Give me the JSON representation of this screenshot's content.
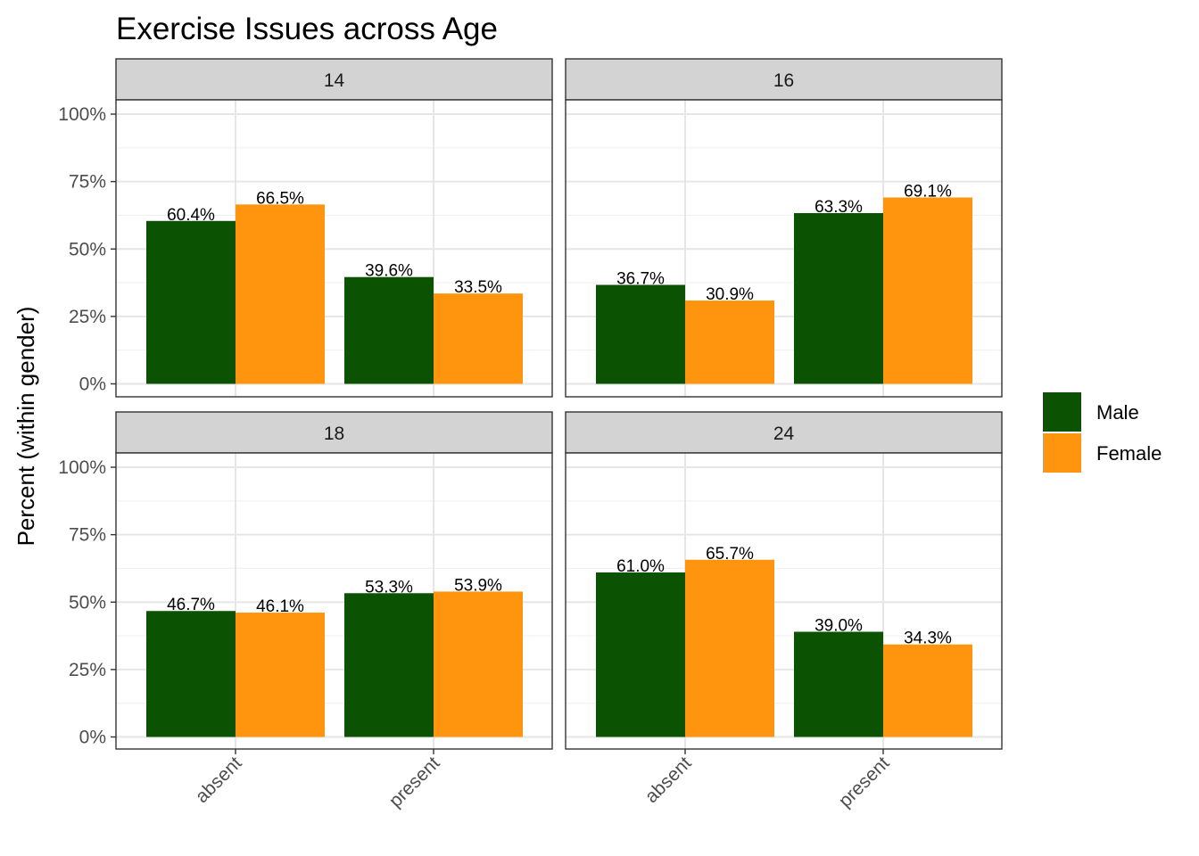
{
  "chart_data": {
    "type": "bar",
    "title": "Exercise Issues across Age",
    "ylabel": "Percent (within gender)",
    "xlabel": "",
    "ylim": [
      0,
      100
    ],
    "yticks": [
      "0%",
      "25%",
      "50%",
      "75%",
      "100%"
    ],
    "ytick_values": [
      0,
      25,
      50,
      75,
      100
    ],
    "grid": true,
    "legend_position": "right",
    "categories": [
      "absent",
      "present"
    ],
    "series_colors": {
      "Male": "#0b5203",
      "Female": "#ff950e"
    },
    "panels": [
      {
        "facet": "14",
        "series": [
          {
            "name": "Male",
            "values": [
              60.4,
              39.6
            ],
            "labels": [
              "60.4%",
              "39.6%"
            ]
          },
          {
            "name": "Female",
            "values": [
              66.5,
              33.5
            ],
            "labels": [
              "66.5%",
              "33.5%"
            ]
          }
        ]
      },
      {
        "facet": "16",
        "series": [
          {
            "name": "Male",
            "values": [
              36.7,
              63.3
            ],
            "labels": [
              "36.7%",
              "63.3%"
            ]
          },
          {
            "name": "Female",
            "values": [
              30.9,
              69.1
            ],
            "labels": [
              "30.9%",
              "69.1%"
            ]
          }
        ]
      },
      {
        "facet": "18",
        "series": [
          {
            "name": "Male",
            "values": [
              46.7,
              53.3
            ],
            "labels": [
              "46.7%",
              "53.3%"
            ]
          },
          {
            "name": "Female",
            "values": [
              46.1,
              53.9
            ],
            "labels": [
              "46.1%",
              "53.9%"
            ]
          }
        ]
      },
      {
        "facet": "24",
        "series": [
          {
            "name": "Male",
            "values": [
              61.0,
              39.0
            ],
            "labels": [
              "61.0%",
              "39.0%"
            ]
          },
          {
            "name": "Female",
            "values": [
              65.7,
              34.3
            ],
            "labels": [
              "65.7%",
              "34.3%"
            ]
          }
        ]
      }
    ],
    "legend": [
      {
        "name": "Male",
        "color": "#0b5203"
      },
      {
        "name": "Female",
        "color": "#ff950e"
      }
    ]
  }
}
